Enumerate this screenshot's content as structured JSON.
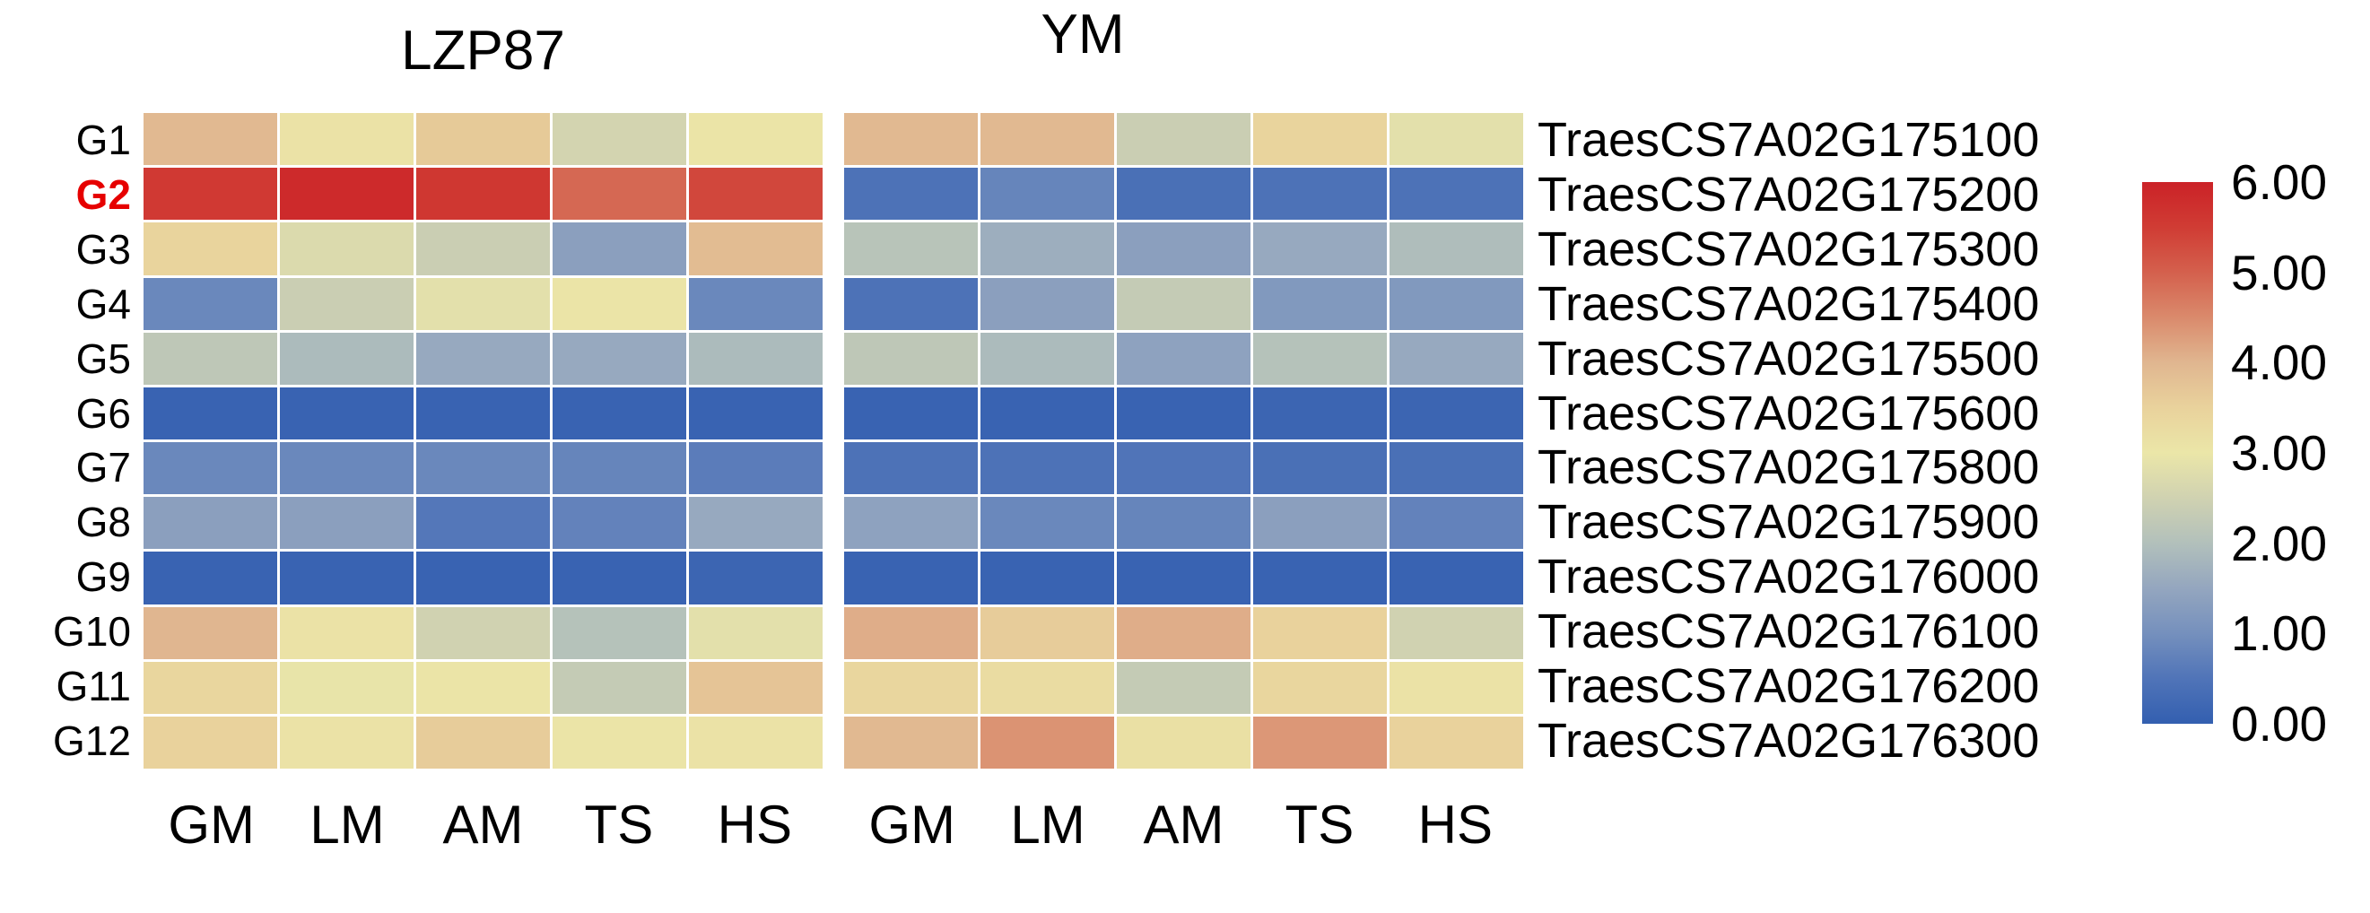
{
  "figure": {
    "background": "#ffffff"
  },
  "chart_data": {
    "type": "heatmap",
    "value_range": [
      0,
      6
    ],
    "rows": [
      "G1",
      "G2",
      "G3",
      "G4",
      "G5",
      "G6",
      "G7",
      "G8",
      "G9",
      "G10",
      "G11",
      "G12"
    ],
    "highlighted_row": "G2",
    "highlight_color": "#e60000",
    "row_label_color": "#000000",
    "gene_labels": [
      "TraesCS7A02G175100",
      "TraesCS7A02G175200",
      "TraesCS7A02G175300",
      "TraesCS7A02G175400",
      "TraesCS7A02G175500",
      "TraesCS7A02G175600",
      "TraesCS7A02G175800",
      "TraesCS7A02G175900",
      "TraesCS7A02G176000",
      "TraesCS7A02G176100",
      "TraesCS7A02G176200",
      "TraesCS7A02G176300"
    ],
    "columns": [
      "GM",
      "LM",
      "AM",
      "TS",
      "HS"
    ],
    "panels": [
      {
        "title": "LZP87",
        "values": [
          [
            3.95,
            3.1,
            3.65,
            2.55,
            3.05
          ],
          [
            5.55,
            5.85,
            5.6,
            4.9,
            5.35
          ],
          [
            3.45,
            2.7,
            2.4,
            1.35,
            3.9
          ],
          [
            0.85,
            2.4,
            2.85,
            3.05,
            0.85
          ],
          [
            2.2,
            1.9,
            1.55,
            1.55,
            1.9
          ],
          [
            0.1,
            0.1,
            0.1,
            0.1,
            0.1
          ],
          [
            0.85,
            0.85,
            0.85,
            0.8,
            0.65
          ],
          [
            1.35,
            1.35,
            0.55,
            0.75,
            1.55
          ],
          [
            0.1,
            0.1,
            0.1,
            0.1,
            0.15
          ],
          [
            4.0,
            3.1,
            2.5,
            2.05,
            2.85
          ],
          [
            3.4,
            2.95,
            3.05,
            2.3,
            3.75
          ],
          [
            3.5,
            3.1,
            3.6,
            3.05,
            3.1
          ]
        ]
      },
      {
        "title": "YM",
        "values": [
          [
            3.95,
            3.95,
            2.4,
            3.45,
            2.85
          ],
          [
            0.45,
            0.8,
            0.4,
            0.45,
            0.45
          ],
          [
            2.1,
            1.65,
            1.35,
            1.55,
            1.95
          ],
          [
            0.45,
            1.35,
            2.3,
            1.2,
            1.2
          ],
          [
            2.2,
            1.9,
            1.4,
            2.05,
            1.55
          ],
          [
            0.1,
            0.1,
            0.1,
            0.15,
            0.15
          ],
          [
            0.45,
            0.45,
            0.5,
            0.4,
            0.4
          ],
          [
            1.4,
            0.85,
            0.8,
            1.35,
            0.75
          ],
          [
            0.1,
            0.1,
            0.1,
            0.1,
            0.1
          ],
          [
            4.1,
            3.6,
            4.1,
            3.5,
            2.5
          ],
          [
            3.4,
            3.25,
            2.3,
            3.4,
            3.1
          ],
          [
            3.95,
            4.4,
            3.15,
            4.35,
            3.5
          ]
        ]
      }
    ],
    "colorbar": {
      "min": 0,
      "max": 6,
      "tick_labels": [
        "6.00",
        "5.00",
        "4.00",
        "3.00",
        "2.00",
        "1.00",
        "0.00"
      ],
      "colormap_stops": [
        [
          0.0,
          "#335fb0"
        ],
        [
          0.5,
          "#5074b8"
        ],
        [
          1.0,
          "#7590bd"
        ],
        [
          1.5,
          "#94a6bf"
        ],
        [
          2.0,
          "#b2c0bb"
        ],
        [
          2.5,
          "#d0d2b1"
        ],
        [
          3.0,
          "#ebe6a8"
        ],
        [
          3.5,
          "#e9d29c"
        ],
        [
          4.0,
          "#e0b690"
        ],
        [
          4.5,
          "#da8a6c"
        ],
        [
          5.0,
          "#d4604d"
        ],
        [
          5.5,
          "#d03c34"
        ],
        [
          6.0,
          "#cb2227"
        ]
      ]
    }
  }
}
